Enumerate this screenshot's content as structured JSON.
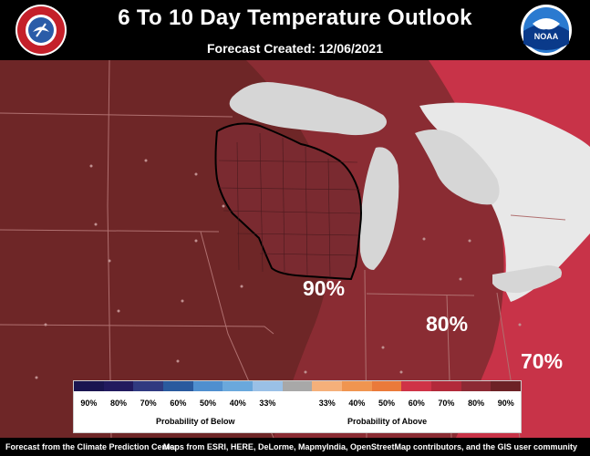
{
  "header": {
    "title": "6 To 10 Day Temperature Outlook",
    "subtitle": "Forecast Created: 12/06/2021",
    "left_logo_text": "NATIONAL WEATHER SERVICE",
    "right_logo_text": "NOAA"
  },
  "map": {
    "probability_labels": [
      "90%",
      "80%",
      "70%"
    ],
    "colors": {
      "prob_90": "#6e2627",
      "prob_80": "#8a2c33",
      "prob_70": "#c83348",
      "lakes": "#d6d6d6",
      "boundary": "#b07070"
    }
  },
  "legend": {
    "colors": [
      "#1a1550",
      "#221a5e",
      "#303a80",
      "#2a5a9e",
      "#4f8fcf",
      "#6aa8dc",
      "#9ac0e6",
      "#a8a8a8",
      "#f5b07a",
      "#f09550",
      "#ea7a3a",
      "#cf3347",
      "#b22a3a",
      "#8c2a34",
      "#6d2226"
    ],
    "labels": [
      "90%",
      "80%",
      "70%",
      "60%",
      "50%",
      "40%",
      "33%",
      "",
      "33%",
      "40%",
      "50%",
      "60%",
      "70%",
      "80%",
      "90%"
    ],
    "below_caption": "Probability of Below",
    "above_caption": "Probability of Above"
  },
  "footer": {
    "left": "Forecast from the Climate Prediction Center",
    "right": "Maps from ESRI, HERE, DeLorme, MapmyIndia, OpenStreetMap contributors, and the GIS user community"
  }
}
